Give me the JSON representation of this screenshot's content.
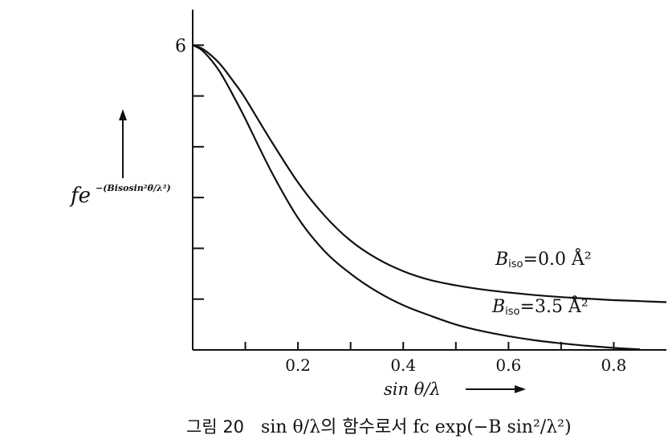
{
  "chart_data": {
    "type": "line",
    "ylabel": "fe^-(Bisosin²θ/λ²)",
    "ylabel_main": "fe",
    "ylabel_exp": "−(Bisosin²θ/λ²)",
    "xlabel": "sin θ/λ",
    "x_ticks": [
      0.1,
      0.2,
      0.3,
      0.4,
      0.5,
      0.6,
      0.7,
      0.8
    ],
    "x_tick_labels": [
      {
        "x": 0.2,
        "label": "0.2"
      },
      {
        "x": 0.4,
        "label": "0.4"
      },
      {
        "x": 0.6,
        "label": "0.6"
      },
      {
        "x": 0.8,
        "label": "0.8"
      }
    ],
    "y_ticks": [
      1,
      2,
      3,
      4,
      5,
      6
    ],
    "y_tick_labels": [
      {
        "y": 6,
        "label": "6"
      }
    ],
    "xlim": [
      0,
      0.9
    ],
    "ylim": [
      0,
      6.7
    ],
    "series": [
      {
        "name": "B_iso = 0.0 Å²",
        "name_main": "B",
        "name_sub": "iso",
        "name_rest": "=0.0 Å²",
        "x": [
          0,
          0.02,
          0.05,
          0.08,
          0.1,
          0.15,
          0.2,
          0.25,
          0.3,
          0.35,
          0.4,
          0.45,
          0.5,
          0.55,
          0.6,
          0.65,
          0.7,
          0.75,
          0.8,
          0.85,
          0.9
        ],
        "y": [
          6.0,
          5.92,
          5.65,
          5.25,
          4.95,
          4.1,
          3.3,
          2.65,
          2.15,
          1.8,
          1.55,
          1.38,
          1.27,
          1.19,
          1.13,
          1.08,
          1.04,
          1.01,
          0.98,
          0.96,
          0.94
        ]
      },
      {
        "name": "B_iso = 3.5 Å²",
        "name_main": "B",
        "name_sub": "iso",
        "name_rest": "=3.5 Å²",
        "x": [
          0,
          0.02,
          0.05,
          0.08,
          0.1,
          0.15,
          0.2,
          0.25,
          0.3,
          0.35,
          0.4,
          0.45,
          0.5,
          0.55,
          0.6,
          0.65,
          0.7,
          0.75,
          0.8,
          0.85
        ],
        "y": [
          6.0,
          5.88,
          5.5,
          4.95,
          4.55,
          3.5,
          2.6,
          1.95,
          1.5,
          1.15,
          0.88,
          0.68,
          0.5,
          0.37,
          0.27,
          0.19,
          0.13,
          0.08,
          0.04,
          0.01
        ]
      }
    ],
    "grid": false,
    "legend": "inline labels right of curves"
  },
  "caption": {
    "label": "그림 20",
    "text": "sin θ/λ의 함수로서 fc exp(−B sin²/λ²)"
  }
}
